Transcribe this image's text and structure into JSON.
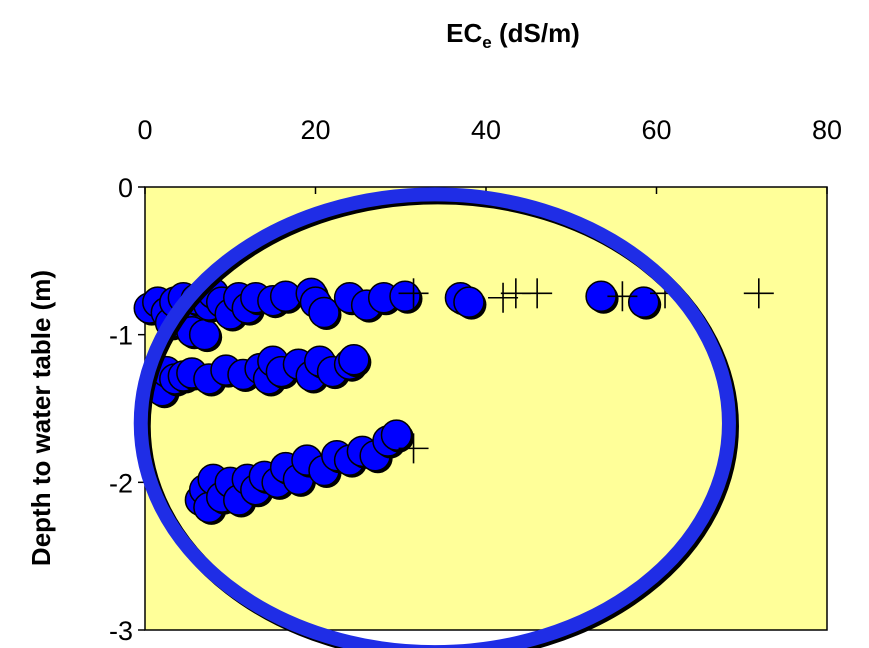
{
  "chart_data": {
    "type": "scatter",
    "title": "",
    "xlabel": "ECe (dS/m)",
    "xlabel_main": "EC",
    "xlabel_sub": "e",
    "xlabel_rest": " (dS/m)",
    "ylabel": "Depth to water table (m)",
    "xlim": [
      0,
      80
    ],
    "ylim": [
      -3,
      0
    ],
    "x_axis_position": "top",
    "x_ticks": [
      0,
      20,
      40,
      60,
      80
    ],
    "y_ticks": [
      0,
      -1,
      -2,
      -3
    ],
    "grid": false,
    "legend": "none",
    "plot_background": "#ffff99",
    "series": [
      {
        "marker": "circle",
        "color": "#0000ff",
        "points": [
          [
            0.5,
            -0.82
          ],
          [
            1.5,
            -0.78
          ],
          [
            2.5,
            -0.85
          ],
          [
            3.0,
            -0.92
          ],
          [
            3.5,
            -0.78
          ],
          [
            4.5,
            -0.75
          ],
          [
            5.0,
            -0.86
          ],
          [
            5.5,
            -0.98
          ],
          [
            6.0,
            -0.76
          ],
          [
            7.0,
            -1.0
          ],
          [
            7.5,
            -0.8
          ],
          [
            8.0,
            -0.72
          ],
          [
            9.0,
            -0.78
          ],
          [
            10.0,
            -0.86
          ],
          [
            11.0,
            -0.75
          ],
          [
            12.0,
            -0.82
          ],
          [
            13.0,
            -0.75
          ],
          [
            15.0,
            -0.77
          ],
          [
            16.5,
            -0.74
          ],
          [
            19.5,
            -0.72
          ],
          [
            20.0,
            -0.78
          ],
          [
            21.0,
            -0.85
          ],
          [
            24.0,
            -0.75
          ],
          [
            26.0,
            -0.8
          ],
          [
            28.0,
            -0.75
          ],
          [
            30.5,
            -0.74
          ],
          [
            37.0,
            -0.75
          ],
          [
            38.0,
            -0.78
          ],
          [
            53.5,
            -0.74
          ],
          [
            58.5,
            -0.78
          ],
          [
            1.5,
            -1.32
          ],
          [
            2.0,
            -1.38
          ],
          [
            2.5,
            -1.25
          ],
          [
            3.5,
            -1.3
          ],
          [
            4.5,
            -1.28
          ],
          [
            5.5,
            -1.26
          ],
          [
            7.5,
            -1.3
          ],
          [
            9.5,
            -1.24
          ],
          [
            11.5,
            -1.27
          ],
          [
            13.5,
            -1.23
          ],
          [
            14.5,
            -1.3
          ],
          [
            15.0,
            -1.18
          ],
          [
            16.0,
            -1.25
          ],
          [
            18.0,
            -1.2
          ],
          [
            19.5,
            -1.28
          ],
          [
            20.5,
            -1.18
          ],
          [
            22.0,
            -1.25
          ],
          [
            24.0,
            -1.2
          ],
          [
            24.5,
            -1.17
          ],
          [
            6.5,
            -2.12
          ],
          [
            7.0,
            -2.05
          ],
          [
            7.5,
            -2.17
          ],
          [
            8.0,
            -1.98
          ],
          [
            9.0,
            -2.1
          ],
          [
            10.0,
            -2.0
          ],
          [
            11.0,
            -2.12
          ],
          [
            12.0,
            -1.98
          ],
          [
            13.0,
            -2.05
          ],
          [
            14.0,
            -1.96
          ],
          [
            15.5,
            -2.0
          ],
          [
            16.5,
            -1.9
          ],
          [
            18.0,
            -1.98
          ],
          [
            19.0,
            -1.85
          ],
          [
            21.0,
            -1.92
          ],
          [
            22.5,
            -1.82
          ],
          [
            24.0,
            -1.85
          ],
          [
            25.5,
            -1.79
          ],
          [
            27.0,
            -1.82
          ],
          [
            28.5,
            -1.72
          ],
          [
            29.5,
            -1.68
          ]
        ]
      },
      {
        "marker": "plus",
        "color": "#000000",
        "points": [
          [
            31.5,
            -0.72
          ],
          [
            42.0,
            -0.75
          ],
          [
            43.5,
            -0.72
          ],
          [
            46.0,
            -0.72
          ],
          [
            56.0,
            -0.74
          ],
          [
            61.0,
            -0.72
          ],
          [
            72.0,
            -0.72
          ],
          [
            31.5,
            -1.77
          ]
        ]
      }
    ],
    "annotations": [
      {
        "type": "ellipse",
        "color": "#1f2de6",
        "center": [
          34,
          -1.6
        ],
        "radius_x": 34.5,
        "radius_y": 1.55
      }
    ]
  }
}
